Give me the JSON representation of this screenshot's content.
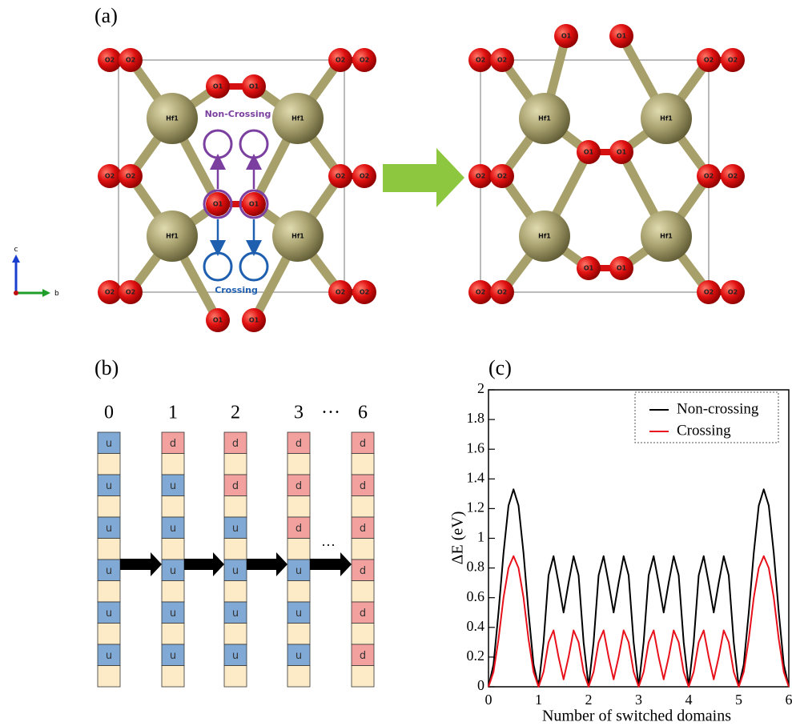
{
  "panel_a": {
    "label": "(a)",
    "left_atoms": [
      "O2",
      "O2",
      "O2",
      "O2",
      "O1",
      "O1",
      "Hf1",
      "Hf1",
      "O2",
      "O2",
      "O2",
      "O2",
      "O1",
      "O1",
      "Hf1",
      "Hf1",
      "O2",
      "O2",
      "O2",
      "O2",
      "O1",
      "O1"
    ],
    "right_atoms": [
      "O1",
      "O1",
      "O2",
      "O2",
      "O2",
      "O2",
      "Hf1",
      "Hf1",
      "O2",
      "O2",
      "O2",
      "O2",
      "O1",
      "O1",
      "Hf1",
      "Hf1",
      "O1",
      "O1",
      "O2",
      "O2",
      "O2",
      "O2"
    ],
    "non_crossing": "Non-Crossing",
    "crossing": "Crossing",
    "axis_labels": [
      "c",
      "b"
    ]
  },
  "panel_b": {
    "label": "(b)",
    "headers": [
      "0",
      "1",
      "2",
      "3",
      "···",
      "6"
    ],
    "between_ellipsis": "···",
    "columns": [
      [
        "u",
        "u",
        "u",
        "u",
        "u",
        "u"
      ],
      [
        "d",
        "u",
        "u",
        "u",
        "u",
        "u"
      ],
      [
        "d",
        "d",
        "u",
        "u",
        "u",
        "u"
      ],
      [
        "d",
        "d",
        "d",
        "u",
        "u",
        "u"
      ],
      [
        "d",
        "d",
        "d",
        "d",
        "d",
        "d"
      ]
    ]
  },
  "chart_data": {
    "type": "line",
    "label": "(c)",
    "x_label": "Number of switched domains",
    "y_label": "ΔE (eV)",
    "xlim": [
      0,
      6
    ],
    "ylim": [
      0,
      2
    ],
    "xticks": [
      0,
      1,
      2,
      3,
      4,
      5,
      6
    ],
    "yticks": [
      0,
      0.2,
      0.4,
      0.6,
      0.8,
      1,
      1.2,
      1.4,
      1.6,
      1.8,
      2
    ],
    "legend": "upper right",
    "x": [
      0,
      0.1,
      0.2,
      0.3,
      0.4,
      0.5,
      0.6,
      0.7,
      0.8,
      0.9,
      1,
      1.1,
      1.2,
      1.3,
      1.4,
      1.5,
      1.6,
      1.7,
      1.8,
      1.9,
      2,
      2.1,
      2.2,
      2.3,
      2.4,
      2.5,
      2.6,
      2.7,
      2.8,
      2.9,
      3,
      3.1,
      3.2,
      3.3,
      3.4,
      3.5,
      3.6,
      3.7,
      3.8,
      3.9,
      4,
      4.1,
      4.2,
      4.3,
      4.4,
      4.5,
      4.6,
      4.7,
      4.8,
      4.9,
      5,
      5.1,
      5.2,
      5.3,
      5.4,
      5.5,
      5.6,
      5.7,
      5.8,
      5.9,
      6
    ],
    "series": [
      {
        "name": "Non-crossing",
        "color": "#000000",
        "values": [
          0,
          0.15,
          0.5,
          0.9,
          1.22,
          1.33,
          1.22,
          0.9,
          0.5,
          0.15,
          0,
          0.3,
          0.75,
          0.88,
          0.7,
          0.5,
          0.7,
          0.88,
          0.75,
          0.3,
          0,
          0.3,
          0.75,
          0.88,
          0.7,
          0.5,
          0.7,
          0.88,
          0.75,
          0.3,
          0,
          0.3,
          0.75,
          0.88,
          0.7,
          0.5,
          0.7,
          0.88,
          0.75,
          0.3,
          0,
          0.3,
          0.75,
          0.88,
          0.7,
          0.5,
          0.7,
          0.88,
          0.75,
          0.3,
          0,
          0.15,
          0.5,
          0.9,
          1.22,
          1.33,
          1.22,
          0.9,
          0.5,
          0.15,
          0
        ]
      },
      {
        "name": "Crossing",
        "color": "#e8101a",
        "values": [
          0,
          0.1,
          0.32,
          0.6,
          0.8,
          0.88,
          0.8,
          0.6,
          0.32,
          0.1,
          0,
          0.1,
          0.3,
          0.38,
          0.2,
          0.05,
          0.2,
          0.38,
          0.3,
          0.1,
          0,
          0.1,
          0.3,
          0.38,
          0.2,
          0.05,
          0.2,
          0.38,
          0.3,
          0.1,
          0,
          0.1,
          0.3,
          0.38,
          0.2,
          0.05,
          0.2,
          0.38,
          0.3,
          0.1,
          0,
          0.1,
          0.3,
          0.38,
          0.2,
          0.05,
          0.2,
          0.38,
          0.3,
          0.1,
          0,
          0.1,
          0.32,
          0.6,
          0.8,
          0.88,
          0.8,
          0.6,
          0.32,
          0.1,
          0
        ]
      }
    ]
  }
}
